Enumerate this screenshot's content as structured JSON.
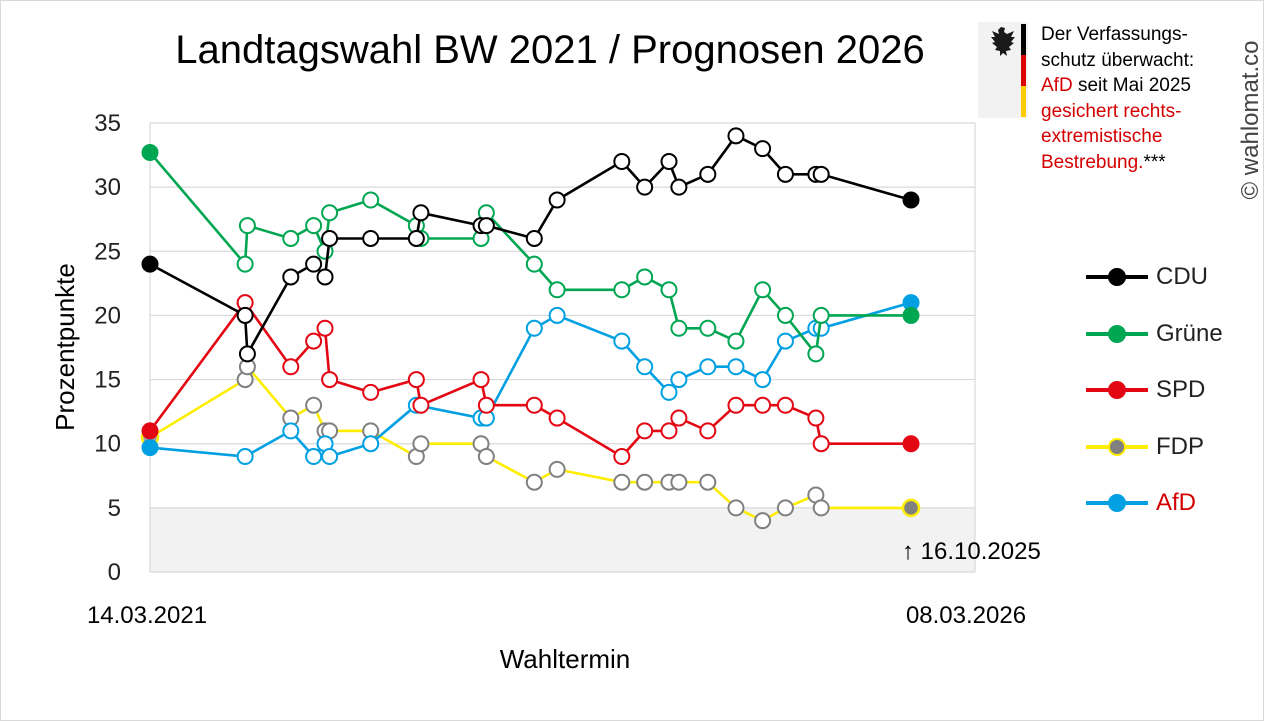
{
  "title": "Landtagswahl BW 2021 / Prognosen 2026",
  "notice": {
    "line1": "Der Verfassungs-",
    "line2": "schutz überwacht:",
    "afd": "AfD",
    "line3_rest": " seit Mai 2025",
    "red1": "gesichert rechts-",
    "red2": "extremistische",
    "red3": "Bestrebung.",
    "stars": "***"
  },
  "copyright": "© wahlomat.co",
  "chart_data": {
    "type": "line",
    "xlabel": "Wahltermin",
    "ylabel": "Prozentpunkte",
    "ylim": [
      0,
      35
    ],
    "yticks": [
      "0",
      "5",
      "10",
      "15",
      "20",
      "25",
      "30",
      "35"
    ],
    "x_start_label": "14.03.2021",
    "x_end_label": "08.03.2026",
    "annotation": "↑ 16.10.2025",
    "grid": true,
    "legend_position": "right",
    "x_scale": [
      0,
      100
    ],
    "series": [
      {
        "name": "CDU",
        "color": "#000000",
        "endpoint_fill": "#000000",
        "label_color": "#222222",
        "points": [
          [
            0,
            24
          ],
          [
            12.5,
            20
          ],
          [
            12.8,
            17
          ],
          [
            18.5,
            23
          ],
          [
            21.5,
            24
          ],
          [
            23,
            23
          ],
          [
            23.6,
            26
          ],
          [
            29,
            26
          ],
          [
            35,
            26
          ],
          [
            35.6,
            28
          ],
          [
            43.5,
            27
          ],
          [
            44.2,
            27
          ],
          [
            50.5,
            26
          ],
          [
            53.5,
            29
          ],
          [
            62,
            32
          ],
          [
            65,
            30
          ],
          [
            68.2,
            32
          ],
          [
            69.5,
            30
          ],
          [
            73.3,
            31
          ],
          [
            77,
            34
          ],
          [
            80.5,
            33
          ],
          [
            83.5,
            31
          ],
          [
            87.5,
            31
          ],
          [
            88.2,
            31
          ],
          [
            100,
            29
          ]
        ]
      },
      {
        "name": "Grüne",
        "color": "#00a651",
        "endpoint_fill": "#00a651",
        "label_color": "#222222",
        "points": [
          [
            0,
            32.7
          ],
          [
            12.5,
            24
          ],
          [
            12.8,
            27
          ],
          [
            18.5,
            26
          ],
          [
            21.5,
            27
          ],
          [
            23,
            25
          ],
          [
            23.6,
            28
          ],
          [
            29,
            29
          ],
          [
            35,
            27
          ],
          [
            35.6,
            26
          ],
          [
            43.5,
            26
          ],
          [
            44.2,
            28
          ],
          [
            50.5,
            24
          ],
          [
            53.5,
            22
          ],
          [
            62,
            22
          ],
          [
            65,
            23
          ],
          [
            68.2,
            22
          ],
          [
            69.5,
            19
          ],
          [
            73.3,
            19
          ],
          [
            77,
            18
          ],
          [
            80.5,
            22
          ],
          [
            83.5,
            20
          ],
          [
            87.5,
            17
          ],
          [
            88.2,
            20
          ],
          [
            100,
            20
          ]
        ]
      },
      {
        "name": "SPD",
        "color": "#e30613",
        "endpoint_fill": "#e30613",
        "label_color": "#222222",
        "points": [
          [
            0,
            11
          ],
          [
            12.5,
            21
          ],
          [
            18.5,
            16
          ],
          [
            21.5,
            18
          ],
          [
            23,
            19
          ],
          [
            23.6,
            15
          ],
          [
            29,
            14
          ],
          [
            35,
            15
          ],
          [
            35.6,
            13
          ],
          [
            43.5,
            15
          ],
          [
            44.2,
            13
          ],
          [
            50.5,
            13
          ],
          [
            53.5,
            12
          ],
          [
            62,
            9
          ],
          [
            65,
            11
          ],
          [
            68.2,
            11
          ],
          [
            69.5,
            12
          ],
          [
            73.3,
            11
          ],
          [
            77,
            13
          ],
          [
            80.5,
            13
          ],
          [
            83.5,
            13
          ],
          [
            87.5,
            12
          ],
          [
            88.2,
            10
          ],
          [
            100,
            10
          ]
        ]
      },
      {
        "name": "FDP",
        "color": "#ffed00",
        "endpoint_fill": "#808080",
        "label_color": "#222222",
        "points": [
          [
            0,
            10.5
          ],
          [
            12.5,
            15
          ],
          [
            12.8,
            16
          ],
          [
            18.5,
            12
          ],
          [
            21.5,
            13
          ],
          [
            23,
            11
          ],
          [
            23.6,
            11
          ],
          [
            29,
            11
          ],
          [
            35,
            9
          ],
          [
            35.6,
            10
          ],
          [
            43.5,
            10
          ],
          [
            44.2,
            9
          ],
          [
            50.5,
            7
          ],
          [
            53.5,
            8
          ],
          [
            62,
            7
          ],
          [
            65,
            7
          ],
          [
            68.2,
            7
          ],
          [
            69.5,
            7
          ],
          [
            73.3,
            7
          ],
          [
            77,
            5
          ],
          [
            80.5,
            4
          ],
          [
            83.5,
            5
          ],
          [
            87.5,
            6
          ],
          [
            88.2,
            5
          ],
          [
            100,
            5
          ]
        ]
      },
      {
        "name": "AfD",
        "color": "#00a0e3",
        "endpoint_fill": "#00a0e3",
        "label_color": "#d40000",
        "points": [
          [
            0,
            9.7
          ],
          [
            12.5,
            9
          ],
          [
            18.5,
            11
          ],
          [
            21.5,
            9
          ],
          [
            23,
            10
          ],
          [
            23.6,
            9
          ],
          [
            29,
            10
          ],
          [
            35,
            13
          ],
          [
            43.5,
            12
          ],
          [
            44.2,
            12
          ],
          [
            50.5,
            19
          ],
          [
            53.5,
            20
          ],
          [
            62,
            18
          ],
          [
            65,
            16
          ],
          [
            68.2,
            14
          ],
          [
            69.5,
            15
          ],
          [
            73.3,
            16
          ],
          [
            77,
            16
          ],
          [
            80.5,
            15
          ],
          [
            83.5,
            18
          ],
          [
            87.5,
            19
          ],
          [
            88.2,
            19
          ],
          [
            100,
            21
          ]
        ]
      }
    ]
  }
}
